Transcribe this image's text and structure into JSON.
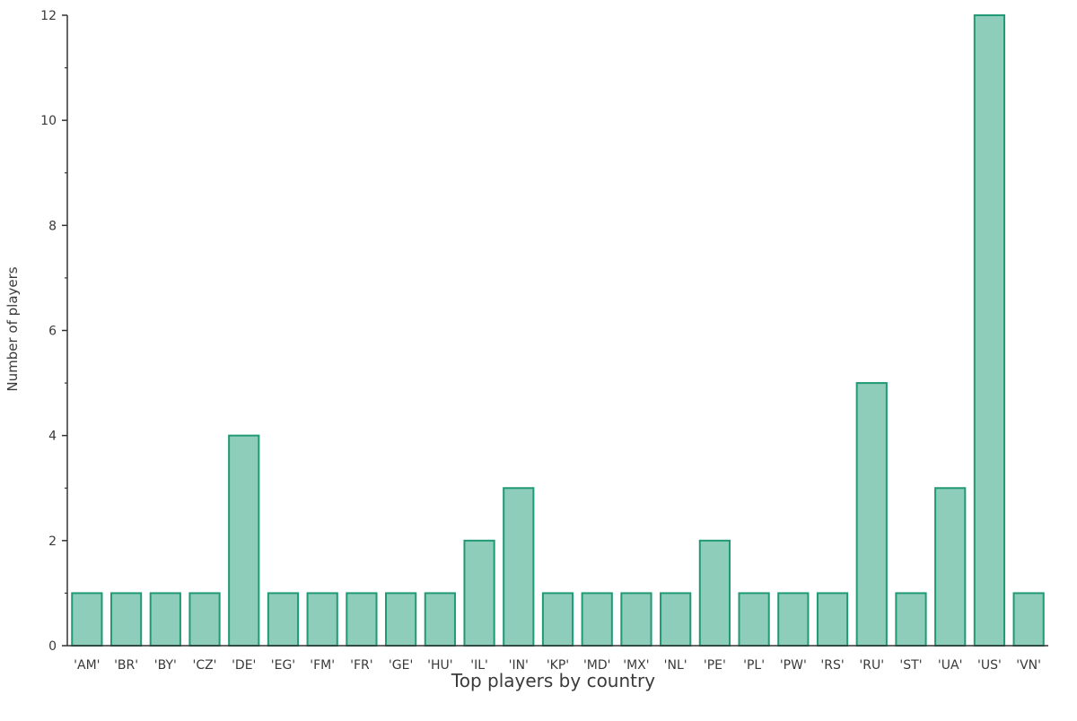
{
  "chart_data": {
    "type": "bar",
    "title": "",
    "xlabel": "Top players by country",
    "ylabel": "Number of players",
    "categories": [
      "'AM'",
      "'BR'",
      "'BY'",
      "'CZ'",
      "'DE'",
      "'EG'",
      "'FM'",
      "'FR'",
      "'GE'",
      "'HU'",
      "'IL'",
      "'IN'",
      "'KP'",
      "'MD'",
      "'MX'",
      "'NL'",
      "'PE'",
      "'PL'",
      "'PW'",
      "'RS'",
      "'RU'",
      "'ST'",
      "'UA'",
      "'US'",
      "'VN'"
    ],
    "values": [
      1,
      1,
      1,
      1,
      4,
      1,
      1,
      1,
      1,
      1,
      2,
      3,
      1,
      1,
      1,
      1,
      2,
      1,
      1,
      1,
      5,
      1,
      3,
      12,
      1
    ],
    "ylim": [
      0,
      12
    ],
    "yticks": [
      0,
      2,
      4,
      6,
      8,
      10,
      12
    ],
    "grid": false,
    "legend": "none",
    "colors": {
      "bar_fill": "#8ecdb9",
      "bar_stroke": "#1f9a74",
      "axis": "#333333"
    }
  }
}
